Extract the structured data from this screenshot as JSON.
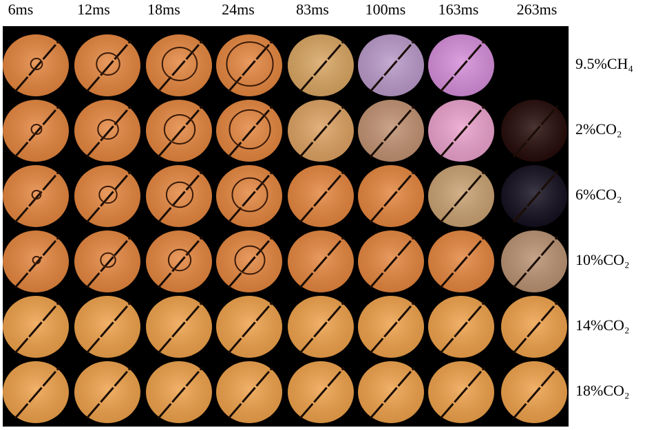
{
  "columns": [
    "6ms",
    "12ms",
    "18ms",
    "24ms",
    "83ms",
    "100ms",
    "163ms",
    "263ms"
  ],
  "rows": [
    "9.5%CH₄",
    "2%CO₂",
    "6%CO₂",
    "10%CO₂",
    "14%CO₂",
    "18%CO₂"
  ]
}
